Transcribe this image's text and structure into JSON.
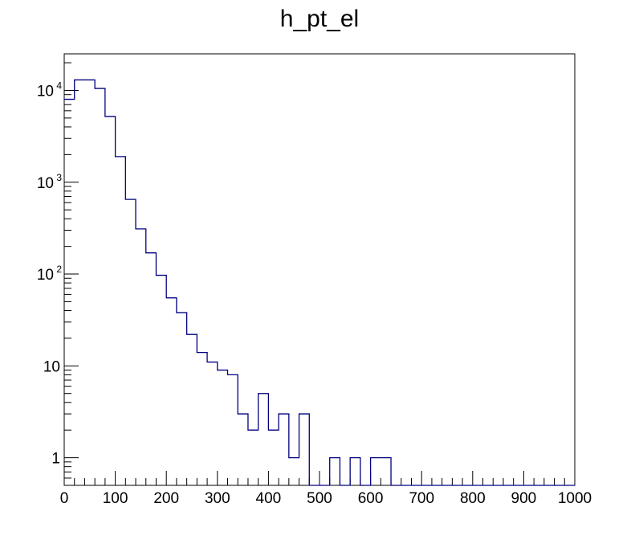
{
  "chart_data": {
    "type": "histogram",
    "title": "h_pt_el",
    "xlabel": "",
    "ylabel": "",
    "x_scale": "linear",
    "y_scale": "log",
    "xlim": [
      0,
      1000
    ],
    "ylim": [
      0.5,
      25000
    ],
    "bin_width": 20,
    "bin_edges_start": 0,
    "values": [
      8000,
      13000,
      13000,
      10500,
      5200,
      1900,
      650,
      310,
      170,
      97,
      55,
      38,
      22,
      14,
      11,
      9,
      8,
      3,
      2,
      5,
      2,
      3,
      1,
      3,
      0,
      0,
      1,
      0,
      1,
      0,
      1,
      1,
      0,
      0,
      0,
      0,
      0,
      0,
      0,
      0,
      0,
      0,
      0,
      0,
      0,
      0,
      0,
      0,
      0,
      0
    ],
    "x_ticks": [
      "0",
      "100",
      "200",
      "300",
      "400",
      "500",
      "600",
      "700",
      "800",
      "900",
      "1000"
    ],
    "y_ticks": [
      {
        "value": 1,
        "base": "1",
        "exp": ""
      },
      {
        "value": 10,
        "base": "10",
        "exp": ""
      },
      {
        "value": 100,
        "base": "10",
        "exp": "2"
      },
      {
        "value": 1000,
        "base": "10",
        "exp": "3"
      },
      {
        "value": 10000,
        "base": "10",
        "exp": "4"
      }
    ],
    "line_color": "#00007f",
    "frame_color": "#000000",
    "grid": false,
    "legend": "none"
  }
}
